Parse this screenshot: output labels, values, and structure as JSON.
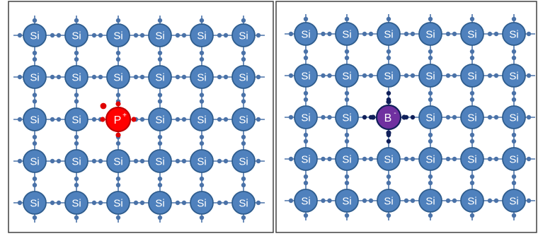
{
  "panels": [
    {
      "id": "phosphorus-doped",
      "host_label": "Si",
      "dopant": {
        "symbol": "P",
        "charge": "+",
        "row": 2,
        "col": 2
      },
      "rows": 5,
      "cols": 6,
      "extra_electron": true,
      "extra_hole": false
    },
    {
      "id": "boron-doped",
      "host_label": "Si",
      "dopant": {
        "symbol": "B",
        "charge": "-",
        "row": 2,
        "col": 2
      },
      "rows": 5,
      "cols": 6,
      "extra_electron": false,
      "extra_hole": false
    }
  ],
  "colors": {
    "silicon_fill": "#4f81bd",
    "silicon_stroke": "#2f5d8e",
    "bond_electron": "#4a72a8",
    "phosphorus_fill": "#ff0000",
    "phosphorus_stroke": "#c00000",
    "phosphorus_electron": "#e00000",
    "boron_fill": "#7030a0",
    "boron_stroke": "#10205a",
    "boron_electron": "#10205a",
    "atom_text": "#ffffff",
    "panel_border": "#404040"
  }
}
